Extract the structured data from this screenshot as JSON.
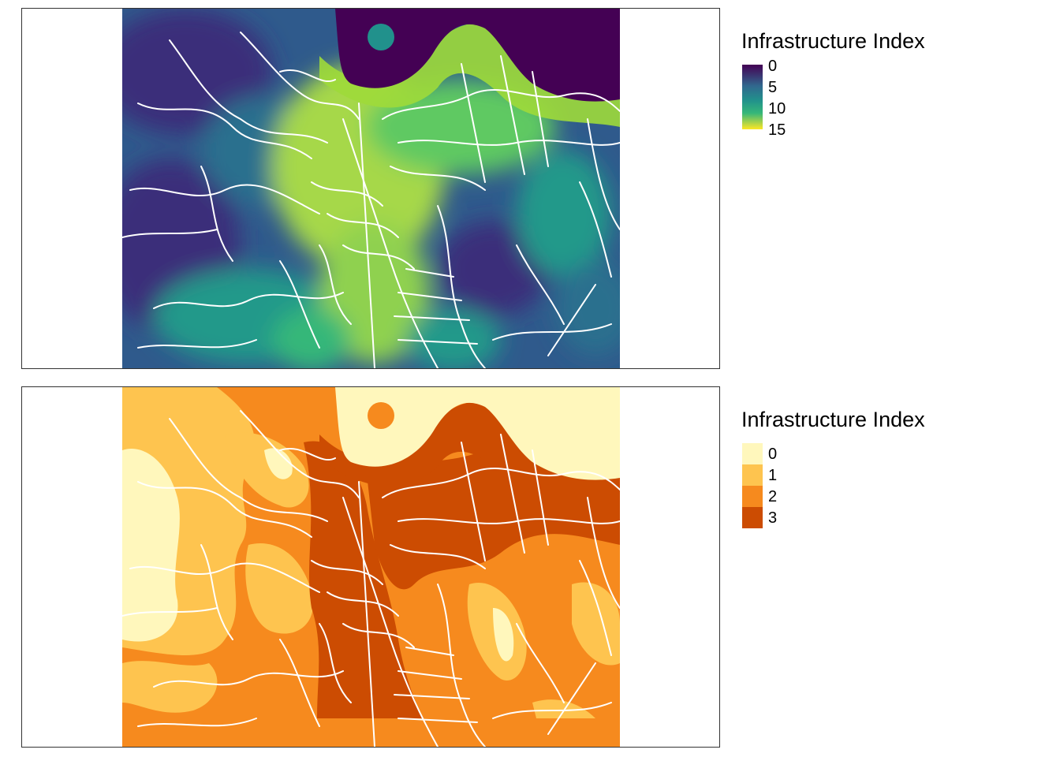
{
  "maps": [
    {
      "legend": {
        "title": "Infrastructure Index",
        "type": "continuous",
        "palette": [
          "#440154",
          "#31688e",
          "#21918c",
          "#35b779",
          "#fde725"
        ],
        "ticks": [
          "0",
          "5",
          "10",
          "15"
        ],
        "range": [
          0,
          16
        ]
      },
      "colors": {
        "sea": "#440154",
        "low": "#3b2f7a",
        "mid_low": "#2c6f8e",
        "mid": "#22998a",
        "mid_high": "#5ec962",
        "high": "#a6d84a",
        "coast": "#fde725",
        "roads": "#ffffff"
      }
    },
    {
      "legend": {
        "title": "Infrastructure Index",
        "type": "categorical",
        "classes": [
          {
            "label": "0",
            "color": "#fff7bc"
          },
          {
            "label": "1",
            "color": "#fec44f"
          },
          {
            "label": "2",
            "color": "#f68a1e"
          },
          {
            "label": "3",
            "color": "#cc4c02"
          }
        ]
      },
      "colors": {
        "roads": "#ffffff"
      }
    }
  ]
}
